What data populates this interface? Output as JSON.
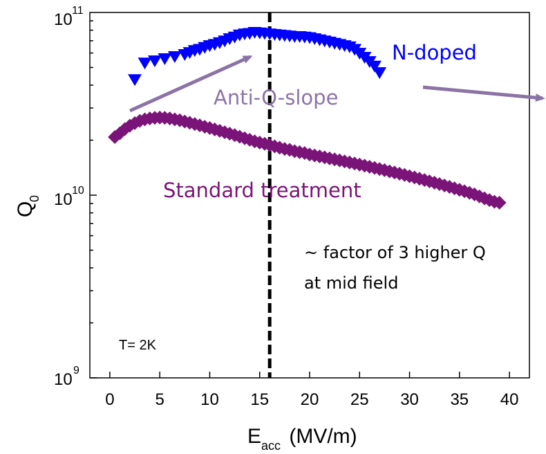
{
  "chart_data": {
    "type": "scatter",
    "xlabel": {
      "main": "E",
      "sub": "acc",
      "rest": " (MV/m)"
    },
    "ylabel": {
      "main": "Q",
      "sub": "0"
    },
    "xlim": [
      -2,
      42
    ],
    "ylim_log10": [
      9,
      11
    ],
    "log_y": true,
    "x_ticks": [
      0,
      5,
      10,
      15,
      20,
      25,
      30,
      35,
      40
    ],
    "x_tick_labels": [
      "0",
      "5",
      "10",
      "15",
      "20",
      "25",
      "30",
      "35",
      "40"
    ],
    "y_ticks": [
      {
        "value": 1000000000.0,
        "base": "10",
        "exp": "9"
      },
      {
        "value": 10000000000.0,
        "base": "10",
        "exp": "10"
      },
      {
        "value": 100000000000.0,
        "base": "10",
        "exp": "11"
      }
    ],
    "grid": false,
    "vline": {
      "x": 16,
      "style": "dashed"
    },
    "series": [
      {
        "name": "N-doped",
        "marker": "triangle-down",
        "color": "#0000ff",
        "x": [
          2.5,
          3.5,
          4.5,
          5.5,
          6.5,
          7.5,
          8.0,
          8.5,
          9.0,
          9.5,
          10.0,
          10.5,
          11.0,
          11.5,
          12.0,
          12.5,
          13.0,
          13.5,
          14.0,
          14.5,
          15.0,
          15.5,
          16.0,
          16.5,
          17.0,
          17.5,
          18.0,
          18.5,
          19.0,
          19.5,
          20.0,
          20.5,
          21.0,
          21.5,
          22.0,
          22.5,
          23.0,
          23.5,
          24.0,
          24.5,
          25.0,
          25.5,
          26.0,
          26.5,
          27.0
        ],
        "y": [
          43000000000.0,
          53000000000.0,
          54500000000.0,
          56000000000.0,
          57500000000.0,
          59000000000.0,
          60500000000.0,
          62000000000.0,
          63000000000.0,
          64500000000.0,
          66000000000.0,
          67000000000.0,
          68500000000.0,
          70000000000.0,
          72000000000.0,
          73500000000.0,
          75500000000.0,
          76500000000.0,
          77000000000.0,
          78000000000.0,
          77500000000.0,
          77000000000.0,
          76500000000.0,
          76000000000.0,
          75500000000.0,
          75000000000.0,
          74500000000.0,
          74000000000.0,
          74000000000.0,
          73500000000.0,
          73000000000.0,
          72000000000.0,
          71000000000.0,
          70000000000.0,
          69000000000.0,
          68000000000.0,
          67000000000.0,
          66000000000.0,
          65000000000.0,
          63000000000.0,
          60000000000.0,
          57000000000.0,
          54000000000.0,
          51000000000.0,
          47000000000.0
        ]
      },
      {
        "name": "Standard treatment",
        "marker": "diamond",
        "color": "#7b1478",
        "x": [
          0.5,
          1.0,
          1.5,
          2.0,
          2.5,
          3.0,
          3.5,
          4.0,
          4.5,
          5.0,
          5.5,
          6.0,
          6.5,
          7.0,
          7.5,
          8.0,
          8.5,
          9.0,
          9.5,
          10.0,
          10.5,
          11.0,
          11.5,
          12.0,
          12.5,
          13.0,
          13.5,
          14.0,
          14.5,
          15.0,
          15.5,
          16.0,
          16.5,
          17.0,
          17.5,
          18.0,
          18.5,
          19.0,
          19.5,
          20.0,
          20.5,
          21.0,
          21.5,
          22.0,
          22.5,
          23.0,
          23.5,
          24.0,
          24.5,
          25.0,
          25.5,
          26.0,
          26.5,
          27.0,
          27.5,
          28.0,
          28.5,
          29.0,
          29.5,
          30.0,
          30.5,
          31.0,
          31.5,
          32.0,
          32.5,
          33.0,
          33.5,
          34.0,
          34.5,
          35.0,
          35.5,
          36.0,
          36.5,
          37.0,
          37.5,
          38.0,
          38.5,
          39.0
        ],
        "y": [
          20800000000.0,
          21800000000.0,
          23000000000.0,
          24000000000.0,
          24800000000.0,
          25500000000.0,
          26000000000.0,
          26300000000.0,
          26500000000.0,
          26600000000.0,
          26500000000.0,
          26300000000.0,
          26000000000.0,
          25700000000.0,
          25300000000.0,
          24900000000.0,
          24500000000.0,
          24100000000.0,
          23700000000.0,
          23300000000.0,
          22900000000.0,
          22500000000.0,
          22100000000.0,
          21700000000.0,
          21300000000.0,
          20900000000.0,
          20500000000.0,
          20100000000.0,
          19700000000.0,
          19400000000.0,
          19100000000.0,
          18800000000.0,
          18500000000.0,
          18200000000.0,
          17900000000.0,
          17700000000.0,
          17400000000.0,
          17200000000.0,
          17000000000.0,
          16700000000.0,
          16500000000.0,
          16300000000.0,
          16100000000.0,
          15900000000.0,
          15700000000.0,
          15500000000.0,
          15300000000.0,
          15100000000.0,
          14900000000.0,
          14700000000.0,
          14500000000.0,
          14300000000.0,
          14100000000.0,
          13900000000.0,
          13700000000.0,
          13500000000.0,
          13300000000.0,
          13100000000.0,
          12900000000.0,
          12700000000.0,
          12500000000.0,
          12300000000.0,
          12100000000.0,
          11900000000.0,
          11700000000.0,
          11500000000.0,
          11300000000.0,
          11100000000.0,
          10900000000.0,
          10700000000.0,
          10500000000.0,
          10300000000.0,
          10100000000.0,
          9850000000.0,
          9600000000.0,
          9400000000.0,
          9200000000.0,
          9100000000.0
        ]
      }
    ],
    "annotations": {
      "n_doped": {
        "text": "N-doped",
        "color": "#0000ff"
      },
      "anti_q_slope": {
        "text": "Anti-Q-slope",
        "color": "#8c73a6"
      },
      "standard": {
        "text": "Standard treatment",
        "color": "#7b1478"
      },
      "factor_line1": "~ factor of 3 higher Q",
      "factor_line2": "at mid field",
      "temperature": "T= 2K",
      "arrow_color": "#8c73a6"
    }
  }
}
